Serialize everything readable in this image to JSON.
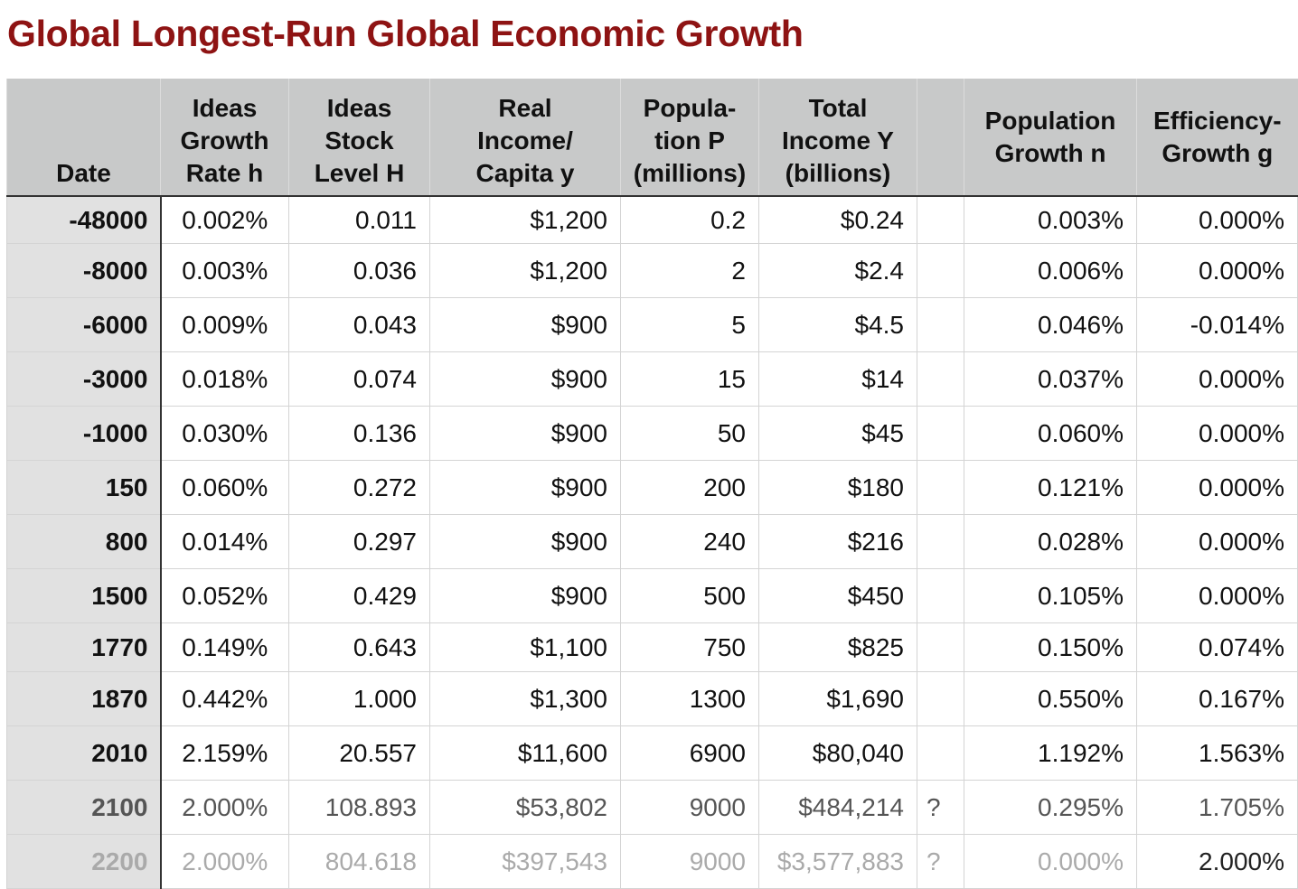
{
  "title": "Global Longest-Run Global Economic Growth",
  "table": {
    "headers": [
      [
        "Date"
      ],
      [
        "Ideas",
        "Growth",
        "Rate h"
      ],
      [
        "Ideas",
        "Stock",
        "Level H"
      ],
      [
        "Real",
        "Income/",
        "Capita y"
      ],
      [
        "Popula-",
        "tion P",
        "(millions)"
      ],
      [
        "Total",
        "Income Y",
        "(billions)"
      ],
      null,
      [
        "Population",
        "Growth n"
      ],
      [
        "Efficiency-",
        "Growth g"
      ]
    ],
    "rows": [
      [
        "-48000",
        "0.002%",
        "0.011",
        "$1,200",
        "0.2",
        "$0.24",
        null,
        "0.003%",
        "0.000%"
      ],
      [
        "-8000",
        "0.003%",
        "0.036",
        "$1,200",
        "2",
        "$2.4",
        null,
        "0.006%",
        "0.000%"
      ],
      [
        "-6000",
        "0.009%",
        "0.043",
        "$900",
        "5",
        "$4.5",
        null,
        "0.046%",
        "-0.014%"
      ],
      [
        "-3000",
        "0.018%",
        "0.074",
        "$900",
        "15",
        "$14",
        null,
        "0.037%",
        "0.000%"
      ],
      [
        "-1000",
        "0.030%",
        "0.136",
        "$900",
        "50",
        "$45",
        null,
        "0.060%",
        "0.000%"
      ],
      [
        "150",
        "0.060%",
        "0.272",
        "$900",
        "200",
        "$180",
        null,
        "0.121%",
        "0.000%"
      ],
      [
        "800",
        "0.014%",
        "0.297",
        "$900",
        "240",
        "$216",
        null,
        "0.028%",
        "0.000%"
      ],
      [
        "1500",
        "0.052%",
        "0.429",
        "$900",
        "500",
        "$450",
        null,
        "0.105%",
        "0.000%"
      ],
      [
        "1770",
        "0.149%",
        "0.643",
        "$1,100",
        "750",
        "$825",
        null,
        "0.150%",
        "0.074%"
      ],
      [
        "1870",
        "0.442%",
        "1.000",
        "$1,300",
        "1300",
        "$1,690",
        null,
        "0.550%",
        "0.167%"
      ],
      [
        "2010",
        "2.159%",
        "20.557",
        "$11,600",
        "6900",
        "$80,040",
        null,
        "1.192%",
        "1.563%"
      ],
      [
        "2100",
        "2.000%",
        "108.893",
        "$53,802",
        "9000",
        "$484,214",
        "?",
        "0.295%",
        "1.705%"
      ],
      [
        "2200",
        "2.000%",
        "804.618",
        "$397,543",
        "9000",
        "$3,577,883",
        "?",
        "0.000%",
        "2.000%"
      ]
    ]
  }
}
